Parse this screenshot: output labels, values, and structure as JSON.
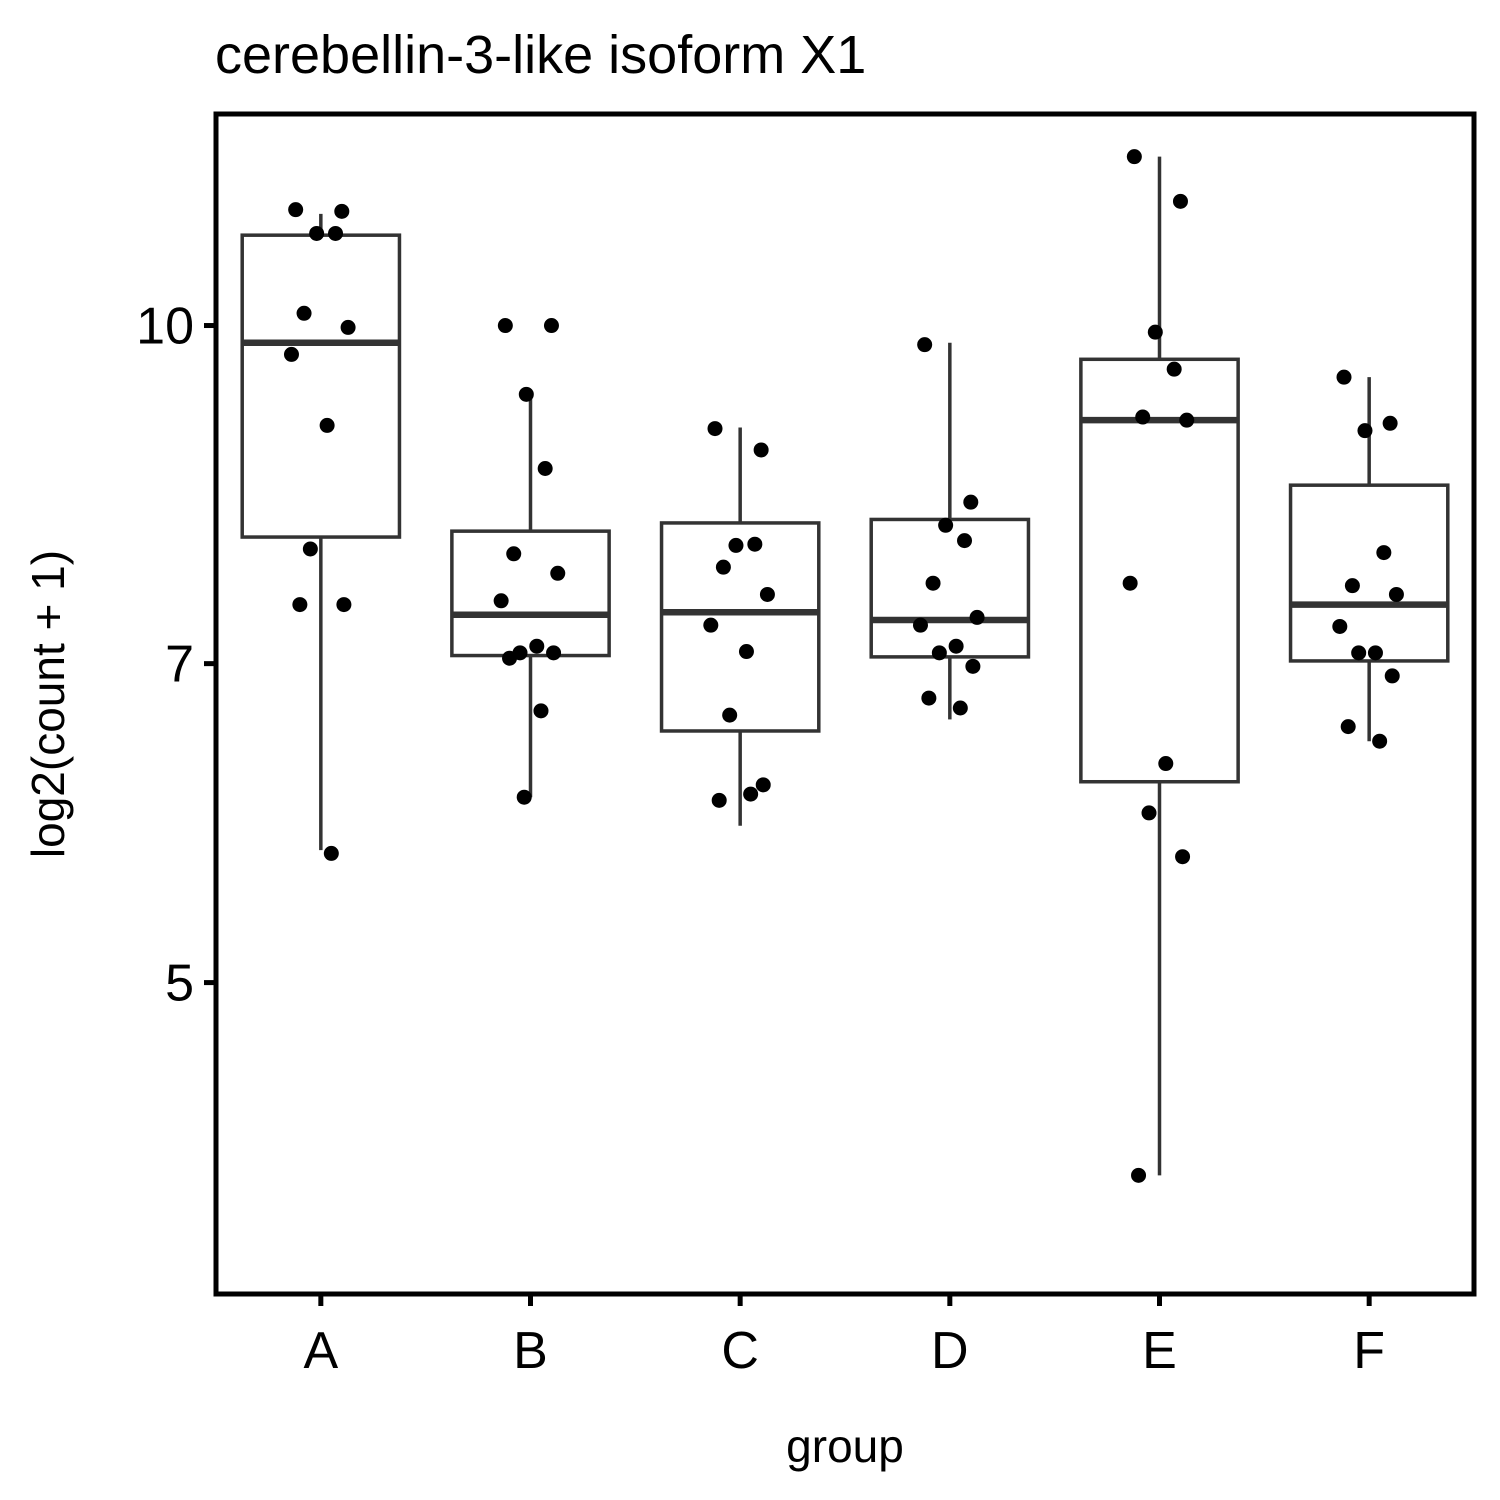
{
  "chart_data": {
    "type": "box",
    "title": "cerebellin-3-like isoform X1",
    "xlabel": "group",
    "ylabel": "log2(count + 1)",
    "scale": "log",
    "ylim": [
      3.6,
      12.5
    ],
    "yticks": [
      5,
      7,
      10
    ],
    "categories": [
      "A",
      "B",
      "C",
      "D",
      "E",
      "F"
    ],
    "boxes": [
      {
        "group": "A",
        "whisker_low": 5.75,
        "q1": 8.0,
        "median": 9.82,
        "q3": 11.0,
        "whisker_high": 11.25
      },
      {
        "group": "B",
        "whisker_low": 6.08,
        "q1": 7.06,
        "median": 7.37,
        "q3": 8.05,
        "whisker_high": 9.3
      },
      {
        "group": "C",
        "whisker_low": 5.9,
        "q1": 6.52,
        "median": 7.39,
        "q3": 8.12,
        "whisker_high": 8.98
      },
      {
        "group": "D",
        "whisker_low": 6.6,
        "q1": 7.05,
        "median": 7.33,
        "q3": 8.15,
        "whisker_high": 9.82
      },
      {
        "group": "E",
        "whisker_low": 4.08,
        "q1": 6.18,
        "median": 9.05,
        "q3": 9.65,
        "whisker_high": 11.95
      },
      {
        "group": "F",
        "whisker_low": 6.45,
        "q1": 7.02,
        "median": 7.45,
        "q3": 8.45,
        "whisker_high": 9.47
      }
    ],
    "points": [
      {
        "group": "A",
        "values": [
          11.3,
          11.28,
          11.02,
          11.02,
          10.13,
          9.98,
          9.7,
          9.0,
          7.9,
          7.45,
          7.45,
          5.73
        ]
      },
      {
        "group": "B",
        "values": [
          10.0,
          10.0,
          9.3,
          8.6,
          7.86,
          7.7,
          7.48,
          7.13,
          7.08,
          7.08,
          7.04,
          6.66,
          6.08
        ]
      },
      {
        "group": "C",
        "values": [
          8.97,
          8.77,
          7.93,
          7.94,
          7.75,
          7.53,
          7.29,
          7.09,
          6.63,
          6.16,
          6.06,
          6.1
        ]
      },
      {
        "group": "D",
        "values": [
          9.8,
          8.3,
          8.1,
          7.97,
          7.62,
          7.35,
          7.29,
          7.13,
          7.08,
          6.98,
          6.75,
          6.68
        ]
      },
      {
        "group": "E",
        "values": [
          11.95,
          11.4,
          9.93,
          9.55,
          9.08,
          9.05,
          7.62,
          6.3,
          5.98,
          5.71,
          4.08
        ]
      },
      {
        "group": "F",
        "values": [
          9.47,
          9.02,
          8.95,
          7.87,
          7.6,
          7.53,
          7.28,
          7.08,
          7.08,
          6.91,
          6.55,
          6.45
        ]
      }
    ],
    "grid": false,
    "legend": "none"
  }
}
